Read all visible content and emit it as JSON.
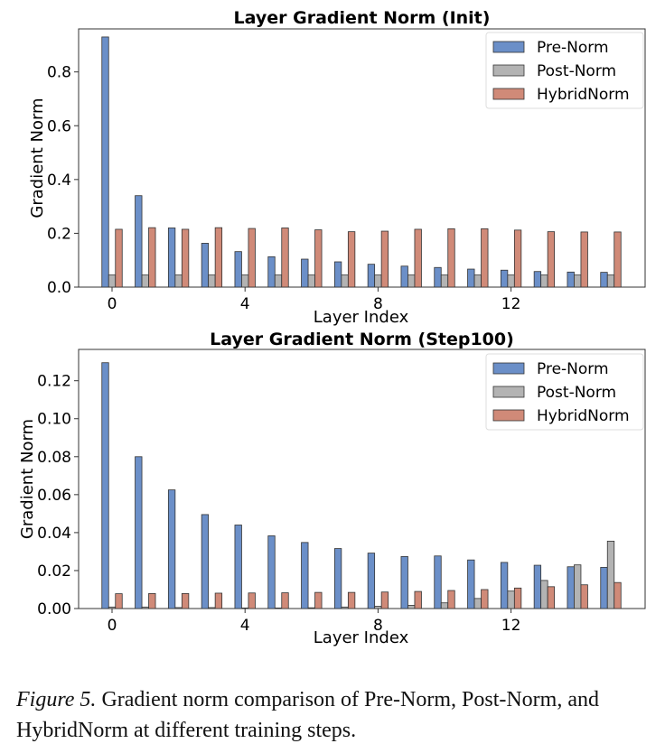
{
  "chart_data": [
    {
      "type": "bar",
      "title": "Layer Gradient Norm (Init)",
      "xlabel": "Layer Index",
      "ylabel": "Gradient Norm",
      "categories": [
        0,
        1,
        2,
        3,
        4,
        5,
        6,
        7,
        8,
        9,
        10,
        11,
        12,
        13,
        14,
        15
      ],
      "xticks": [
        0,
        4,
        8,
        12
      ],
      "ylim": [
        0,
        0.96
      ],
      "yticks": [
        0.0,
        0.2,
        0.4,
        0.6,
        0.8
      ],
      "ytick_labels": [
        "0.0",
        "0.2",
        "0.4",
        "0.6",
        "0.8"
      ],
      "legend_position": "top-right",
      "series": [
        {
          "name": "Pre-Norm",
          "color": "#6b8fc8",
          "values": [
            0.93,
            0.34,
            0.22,
            0.163,
            0.132,
            0.113,
            0.104,
            0.094,
            0.085,
            0.078,
            0.073,
            0.067,
            0.063,
            0.058,
            0.056,
            0.055
          ]
        },
        {
          "name": "Post-Norm",
          "color": "#b3b3b3",
          "values": [
            0.045,
            0.045,
            0.045,
            0.045,
            0.045,
            0.045,
            0.045,
            0.045,
            0.045,
            0.045,
            0.045,
            0.045,
            0.045,
            0.045,
            0.045,
            0.045
          ]
        },
        {
          "name": "HybridNorm",
          "color": "#d08a78",
          "values": [
            0.215,
            0.221,
            0.215,
            0.221,
            0.218,
            0.22,
            0.213,
            0.206,
            0.208,
            0.215,
            0.217,
            0.217,
            0.212,
            0.206,
            0.205,
            0.205
          ]
        }
      ]
    },
    {
      "type": "bar",
      "title": "Layer Gradient Norm (Step100)",
      "xlabel": "Layer Index",
      "ylabel": "Gradient Norm",
      "categories": [
        0,
        1,
        2,
        3,
        4,
        5,
        6,
        7,
        8,
        9,
        10,
        11,
        12,
        13,
        14,
        15
      ],
      "xticks": [
        0,
        4,
        8,
        12
      ],
      "ylim": [
        0,
        0.1365
      ],
      "yticks": [
        0.0,
        0.02,
        0.04,
        0.06,
        0.08,
        0.1,
        0.12
      ],
      "ytick_labels": [
        "0.00",
        "0.02",
        "0.04",
        "0.06",
        "0.08",
        "0.10",
        "0.12"
      ],
      "legend_position": "top-right",
      "series": [
        {
          "name": "Pre-Norm",
          "color": "#6b8fc8",
          "values": [
            0.1295,
            0.08,
            0.0625,
            0.0495,
            0.044,
            0.0383,
            0.0348,
            0.0316,
            0.0292,
            0.0274,
            0.0277,
            0.0256,
            0.0243,
            0.0228,
            0.022,
            0.0217
          ]
        },
        {
          "name": "Post-Norm",
          "color": "#b3b3b3",
          "values": [
            0.0008,
            0.0008,
            0.0005,
            0.0005,
            0.0003,
            0.0003,
            0.0004,
            0.0008,
            0.0012,
            0.0017,
            0.003,
            0.0053,
            0.0092,
            0.0148,
            0.023,
            0.0355
          ]
        },
        {
          "name": "HybridNorm",
          "color": "#d08a78",
          "values": [
            0.0078,
            0.0079,
            0.0079,
            0.0081,
            0.0082,
            0.0083,
            0.0085,
            0.0085,
            0.0087,
            0.009,
            0.0095,
            0.01,
            0.0108,
            0.0115,
            0.0125,
            0.0137
          ]
        }
      ]
    }
  ],
  "caption": {
    "label": "Figure 5.",
    "text": " Gradient norm comparison of Pre-Norm, Post-Norm, and HybridNorm at different training steps."
  }
}
